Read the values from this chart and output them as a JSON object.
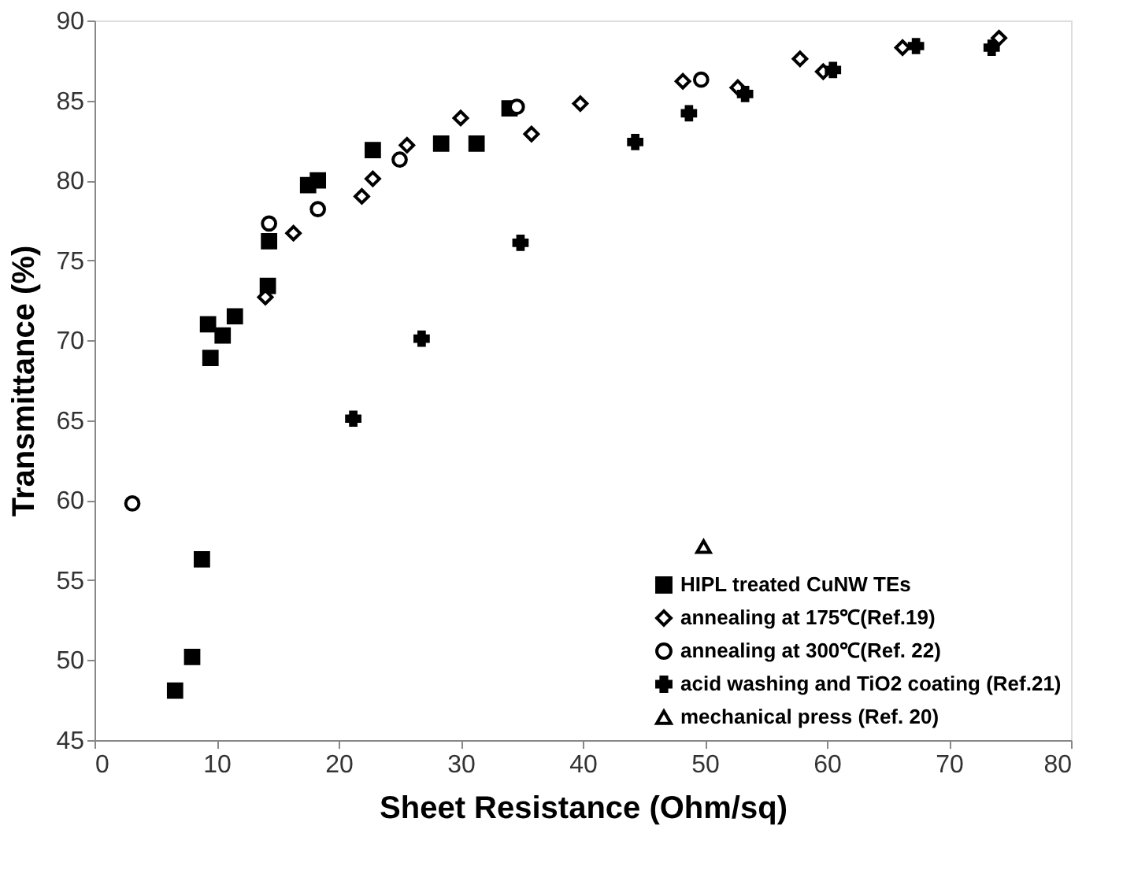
{
  "chart_data": {
    "type": "scatter",
    "xlabel": "Sheet Resistance (Ohm/sq)",
    "ylabel": "Transmittance (%)",
    "xlim": [
      0,
      80
    ],
    "xticks": [
      0,
      10,
      20,
      30,
      40,
      50,
      60,
      70,
      80
    ],
    "ylim": [
      45,
      90
    ],
    "yticks": [
      45,
      50,
      55,
      60,
      65,
      70,
      75,
      80,
      85,
      90
    ],
    "grid": false,
    "legend": "bottom right",
    "series": [
      {
        "name": "HIPL treated CuNW TEs",
        "color": "#000000",
        "marker": "square",
        "x": [
          6.6,
          8.0,
          8.8,
          9.3,
          9.5,
          10.5,
          11.5,
          14.2,
          14.3,
          17.5,
          18.3,
          22.8,
          28.4,
          31.3,
          34.0
        ],
        "values": [
          48.1,
          50.2,
          56.3,
          71.0,
          68.9,
          70.3,
          71.5,
          73.4,
          76.2,
          79.7,
          80.0,
          81.9,
          82.3,
          82.3,
          84.5
        ]
      },
      {
        "name": "annealing at 175℃(Ref.19)",
        "color": "#000000",
        "marker": "diamond",
        "x": [
          14.0,
          16.3,
          21.9,
          22.8,
          25.6,
          30.0,
          35.8,
          39.8,
          48.2,
          52.7,
          57.8,
          59.7,
          66.2,
          74.1
        ],
        "values": [
          72.7,
          76.7,
          79.0,
          80.1,
          82.2,
          83.9,
          82.9,
          84.8,
          86.2,
          85.8,
          87.6,
          86.8,
          88.3,
          88.9
        ]
      },
      {
        "name": "annealing at 300℃(Ref. 22)",
        "color": "#000000",
        "marker": "circle",
        "x": [
          3.1,
          14.3,
          18.3,
          25.0,
          34.6,
          49.7
        ],
        "values": [
          59.8,
          77.3,
          78.2,
          81.3,
          84.6,
          86.3
        ]
      },
      {
        "name": "acid washing and TiO2 coating (Ref.21)",
        "color": "#000000",
        "marker": "cross",
        "x": [
          21.2,
          26.8,
          34.9,
          44.3,
          48.7,
          53.3,
          60.5,
          67.3,
          73.5
        ],
        "values": [
          65.1,
          70.1,
          76.1,
          82.4,
          84.2,
          85.4,
          86.9,
          88.4,
          88.3
        ]
      },
      {
        "name": "mechanical press (Ref. 20)",
        "color": "#000000",
        "marker": "triangle",
        "x": [
          49.9
        ],
        "values": [
          57.1
        ]
      }
    ]
  }
}
